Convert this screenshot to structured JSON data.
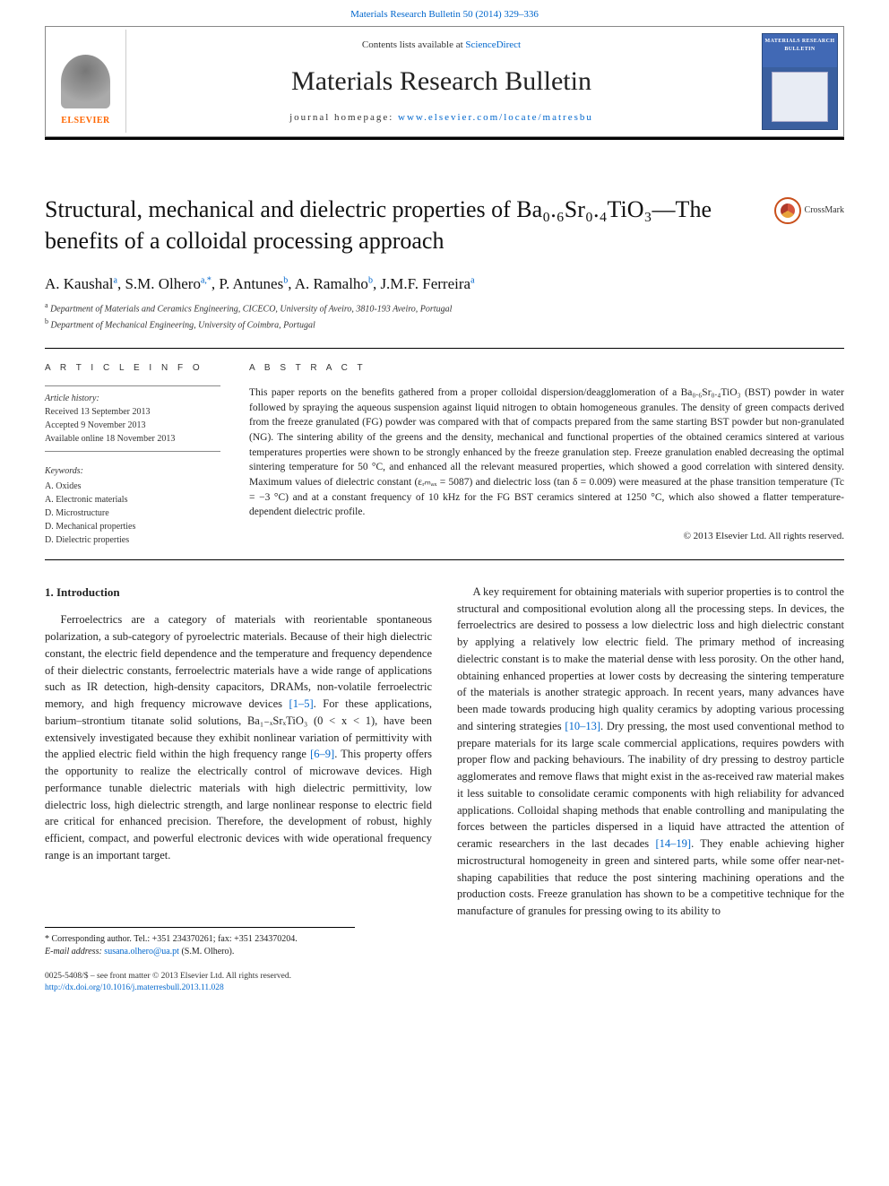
{
  "top_link": "Materials Research Bulletin 50 (2014) 329–336",
  "header": {
    "contents_prefix": "Contents lists available at ",
    "contents_link": "ScienceDirect",
    "journal_name": "Materials Research Bulletin",
    "homepage_prefix": "journal homepage: ",
    "homepage_link": "www.elsevier.com/locate/matresbu",
    "elsevier_label": "ELSEVIER",
    "cover_title": "MATERIALS RESEARCH BULLETIN"
  },
  "title": "Structural, mechanical and dielectric properties of Ba₀.₆Sr₀.₄TiO₃—The benefits of a colloidal processing approach",
  "crossmark": "CrossMark",
  "authors": {
    "a1": "A. Kaushal",
    "a1_sup": "a",
    "a2": "S.M. Olhero",
    "a2_sup": "a,",
    "a2_star": "*",
    "a3": "P. Antunes",
    "a3_sup": "b",
    "a4": "A. Ramalho",
    "a4_sup": "b",
    "a5": "J.M.F. Ferreira",
    "a5_sup": "a"
  },
  "affiliations": {
    "a_sup": "a",
    "a_text": "Department of Materials and Ceramics Engineering, CICECO, University of Aveiro, 3810-193 Aveiro, Portugal",
    "b_sup": "b",
    "b_text": "Department of Mechanical Engineering, University of Coimbra, Portugal"
  },
  "info": {
    "heading": "A R T I C L E  I N F O",
    "history_label": "Article history:",
    "received": "Received 13 September 2013",
    "accepted": "Accepted 9 November 2013",
    "online": "Available online 18 November 2013",
    "keywords_label": "Keywords:",
    "keywords": [
      "A. Oxides",
      "A. Electronic materials",
      "D. Microstructure",
      "D. Mechanical properties",
      "D. Dielectric properties"
    ]
  },
  "abstract": {
    "heading": "A B S T R A C T",
    "text": "This paper reports on the benefits gathered from a proper colloidal dispersion/deagglomeration of a Ba₀.₆Sr₀.₄TiO₃ (BST) powder in water followed by spraying the aqueous suspension against liquid nitrogen to obtain homogeneous granules. The density of green compacts derived from the freeze granulated (FG) powder was compared with that of compacts prepared from the same starting BST powder but non-granulated (NG). The sintering ability of the greens and the density, mechanical and functional properties of the obtained ceramics sintered at various temperatures properties were shown to be strongly enhanced by the freeze granulation step. Freeze granulation enabled decreasing the optimal sintering temperature for 50 °C, and enhanced all the relevant measured properties, which showed a good correlation with sintered density. Maximum values of dielectric constant (εᵣₘₐₓ = 5087) and dielectric loss (tan δ = 0.009) were measured at the phase transition temperature (Tc = −3 °C) and at a constant frequency of 10 kHz for the FG BST ceramics sintered at 1250 °C, which also showed a flatter temperature-dependent dielectric profile.",
    "copyright": "© 2013 Elsevier Ltd. All rights reserved."
  },
  "body": {
    "section1_heading": "1. Introduction",
    "col1_p1_a": "Ferroelectrics are a category of materials with reorientable spontaneous polarization, a sub-category of pyroelectric materials. Because of their high dielectric constant, the electric field dependence and the temperature and frequency dependence of their dielectric constants, ferroelectric materials have a wide range of applications such as IR detection, high-density capacitors, DRAMs, non-volatile ferroelectric memory, and high frequency microwave devices ",
    "col1_ref1": "[1–5]",
    "col1_p1_b": ". For these applications, barium–strontium titanate solid solutions, Ba₁₋ₓSrₓTiO₃ (0 < x < 1), have been extensively investigated because they exhibit nonlinear variation of permittivity with the applied electric field within the high frequency range ",
    "col1_ref2": "[6–9]",
    "col1_p1_c": ". This property offers the opportunity to realize the electrically control of microwave devices. High performance tunable dielectric materials with high dielectric permittivity, low dielectric loss, high dielectric strength, and large nonlinear response to electric field are critical for enhanced precision. Therefore, the development of robust, highly efficient, compact, and powerful electronic devices with wide operational frequency range is an important target.",
    "col2_p1_a": "A key requirement for obtaining materials with superior properties is to control the structural and compositional evolution along all the processing steps. In devices, the ferroelectrics are desired to possess a low dielectric loss and high dielectric constant by applying a relatively low electric field. The primary method of increasing dielectric constant is to make the material dense with less porosity. On the other hand, obtaining enhanced properties at lower costs by decreasing the sintering temperature of the materials is another strategic approach. In recent years, many advances have been made towards producing high quality ceramics by adopting various processing and sintering strategies ",
    "col2_ref1": "[10–13]",
    "col2_p1_b": ". Dry pressing, the most used conventional method to prepare materials for its large scale commercial applications, requires powders with proper flow and packing behaviours. The inability of dry pressing to destroy particle agglomerates and remove flaws that might exist in the as-received raw material makes it less suitable to consolidate ceramic components with high reliability for advanced applications. Colloidal shaping methods that enable controlling and manipulating the forces between the particles dispersed in a liquid have attracted the attention of ceramic researchers in the last decades ",
    "col2_ref2": "[14–19]",
    "col2_p1_c": ". They enable achieving higher microstructural homogeneity in green and sintered parts, while some offer near-net-shaping capabilities that reduce the post sintering machining operations and the production costs. Freeze granulation has shown to be a competitive technique for the manufacture of granules for pressing owing to its ability to"
  },
  "footnote": {
    "star": "*",
    "corresp": " Corresponding author. Tel.: +351 234370261; fax: +351 234370204.",
    "email_label": "E-mail address: ",
    "email_link": "susana.olhero@ua.pt",
    "email_suffix": " (S.M. Olhero)."
  },
  "bottom": {
    "line1": "0025-5408/$ – see front matter © 2013 Elsevier Ltd. All rights reserved.",
    "doi": "http://dx.doi.org/10.1016/j.materresbull.2013.11.028"
  }
}
